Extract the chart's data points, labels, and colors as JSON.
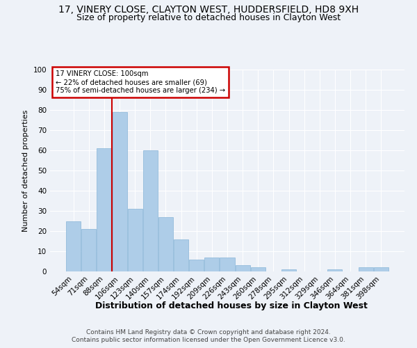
{
  "title": "17, VINERY CLOSE, CLAYTON WEST, HUDDERSFIELD, HD8 9XH",
  "subtitle": "Size of property relative to detached houses in Clayton West",
  "xlabel": "Distribution of detached houses by size in Clayton West",
  "ylabel": "Number of detached properties",
  "categories": [
    "54sqm",
    "71sqm",
    "88sqm",
    "106sqm",
    "123sqm",
    "140sqm",
    "157sqm",
    "174sqm",
    "192sqm",
    "209sqm",
    "226sqm",
    "243sqm",
    "260sqm",
    "278sqm",
    "295sqm",
    "312sqm",
    "329sqm",
    "346sqm",
    "364sqm",
    "381sqm",
    "398sqm"
  ],
  "values": [
    25,
    21,
    61,
    79,
    31,
    60,
    27,
    16,
    6,
    7,
    7,
    3,
    2,
    0,
    1,
    0,
    0,
    1,
    0,
    2,
    2
  ],
  "bar_color": "#aecde8",
  "bar_edge_color": "#88b4d8",
  "vline_x_index": 3,
  "vline_color": "#cc0000",
  "annotation_title": "17 VINERY CLOSE: 100sqm",
  "annotation_line2": "← 22% of detached houses are smaller (69)",
  "annotation_line3": "75% of semi-detached houses are larger (234) →",
  "annotation_box_color": "#cc0000",
  "annotation_bg": "#ffffff",
  "ylim": [
    0,
    100
  ],
  "yticks": [
    0,
    10,
    20,
    30,
    40,
    50,
    60,
    70,
    80,
    90,
    100
  ],
  "footnote1": "Contains HM Land Registry data © Crown copyright and database right 2024.",
  "footnote2": "Contains public sector information licensed under the Open Government Licence v3.0.",
  "background_color": "#eef2f8",
  "title_fontsize": 10,
  "subtitle_fontsize": 9
}
